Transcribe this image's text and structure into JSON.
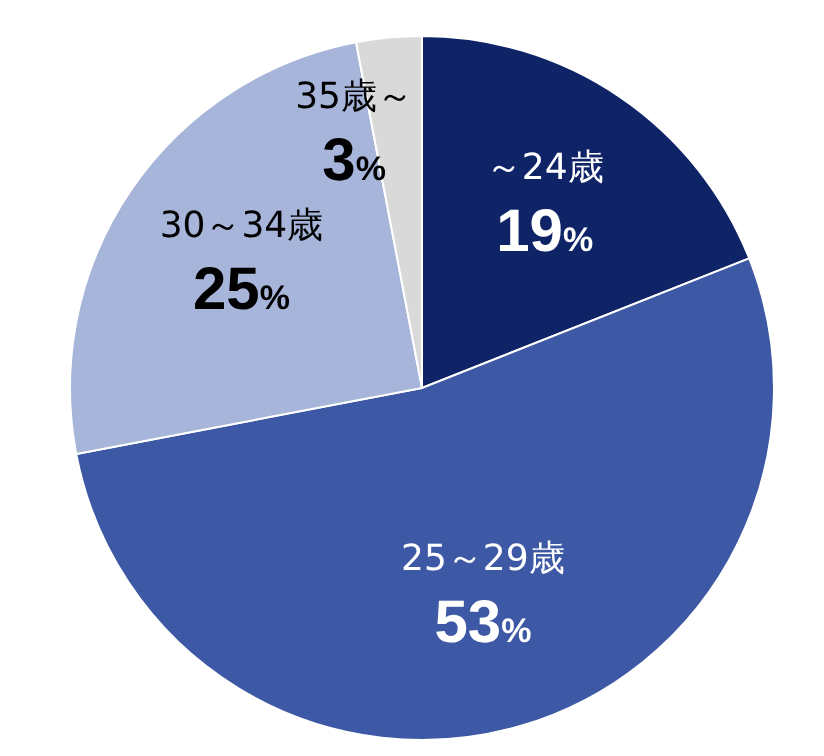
{
  "chart_data": {
    "type": "pie",
    "categories": [
      "～24歳",
      "25～29歳",
      "30～34歳",
      "35歳～"
    ],
    "values": [
      19,
      53,
      25,
      3
    ],
    "value_labels": [
      "19%",
      "53%",
      "25%",
      "3%"
    ],
    "colors": [
      "#0e2466",
      "#3d58a4",
      "#a7b5db",
      "#d9d9d9"
    ]
  }
}
